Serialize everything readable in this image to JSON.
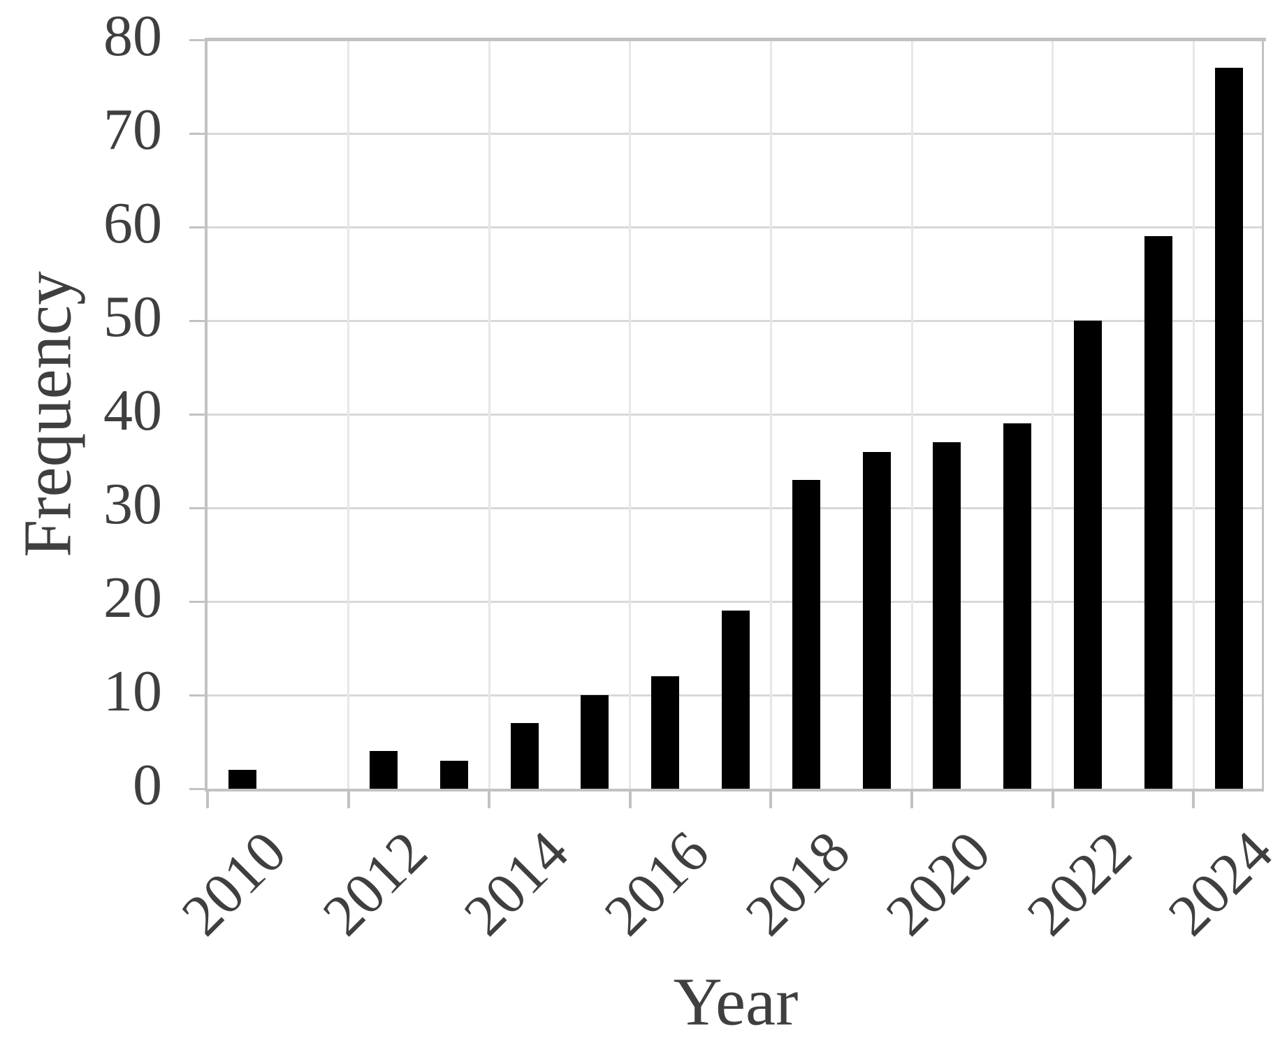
{
  "chart_data": {
    "type": "bar",
    "title": "",
    "xlabel": "Year",
    "ylabel": "Frequency",
    "categories": [
      "2010",
      "2011",
      "2012",
      "2013",
      "2014",
      "2015",
      "2016",
      "2017",
      "2018",
      "2019",
      "2020",
      "2021",
      "2022",
      "2023",
      "2024"
    ],
    "values": [
      2,
      0,
      4,
      3,
      7,
      10,
      12,
      19,
      33,
      36,
      37,
      39,
      50,
      59,
      77
    ],
    "ylim": [
      0,
      80
    ],
    "ytick_step": 10,
    "ytick_labels": [
      "0",
      "10",
      "20",
      "30",
      "40",
      "50",
      "60",
      "70",
      "80"
    ],
    "xtick_labels": [
      "2010",
      "2012",
      "2014",
      "2016",
      "2018",
      "2020",
      "2022",
      "2024"
    ],
    "xtick_interval": 2,
    "grid": "horizontal and vertical gridlines, light gray",
    "legend": "none",
    "bar_color": "#000000"
  },
  "colors": {
    "bar": "#000000",
    "text": "#3f3f3f",
    "gridline_h": "#d8d8d8",
    "gridline_v": "#e7e7e7",
    "axis": "#c2c2c2",
    "background": "#ffffff"
  }
}
